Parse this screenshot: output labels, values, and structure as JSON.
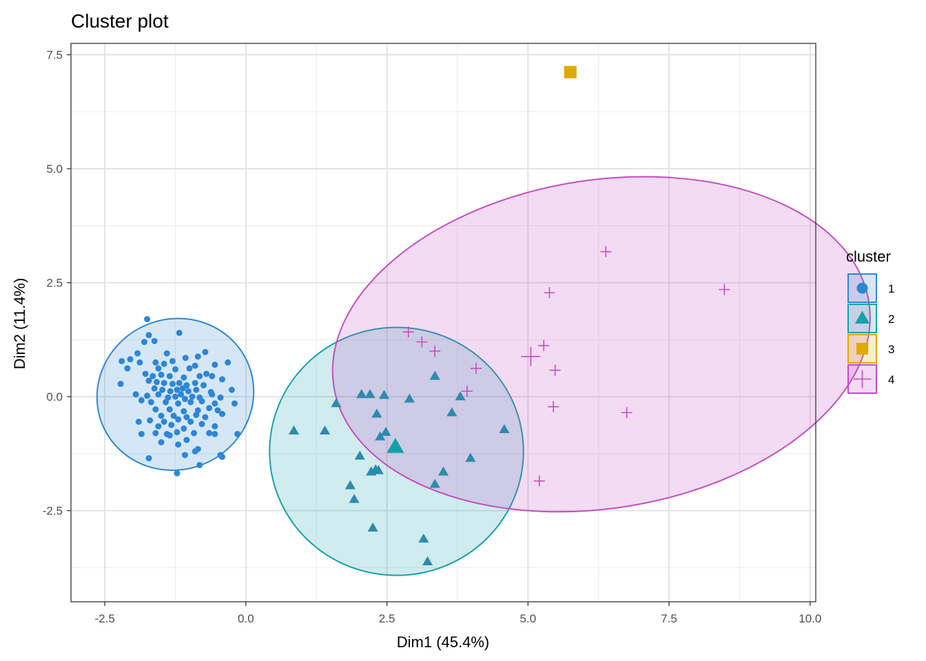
{
  "chart_data": {
    "type": "scatter",
    "title": "Cluster plot",
    "xlabel": "Dim1 (45.4%)",
    "ylabel": "Dim2 (11.4%)",
    "xlim": [
      -3.1,
      10.1
    ],
    "ylim": [
      -4.5,
      7.75
    ],
    "xticks": [
      -2.5,
      0.0,
      2.5,
      5.0,
      7.5,
      10.0
    ],
    "xtick_labels": [
      "-2.5",
      "0.0",
      "2.5",
      "5.0",
      "7.5",
      "10.0"
    ],
    "yticks": [
      -2.5,
      0.0,
      2.5,
      5.0,
      7.5
    ],
    "ytick_labels": [
      "-2.5",
      "0.0",
      "2.5",
      "5.0",
      "7.5"
    ],
    "grid": true,
    "legend": {
      "title": "cluster",
      "placement": "right"
    },
    "series": [
      {
        "name": "1",
        "color": "#2E86D6",
        "shape": "circle",
        "ellipse": {
          "cx": -1.25,
          "cy": 0.05,
          "rx": 1.4,
          "ry": 1.65,
          "angle": -25
        },
        "center": null,
        "points": [
          [
            -1.75,
            1.7
          ],
          [
            -1.18,
            1.4
          ],
          [
            -1.8,
            1.2
          ],
          [
            -1.72,
            1.35
          ],
          [
            -1.62,
            1.22
          ],
          [
            -1.92,
            0.95
          ],
          [
            -1.4,
            0.95
          ],
          [
            -0.72,
            0.98
          ],
          [
            -0.85,
            0.88
          ],
          [
            -1.07,
            0.85
          ],
          [
            -1.3,
            0.78
          ],
          [
            -1.45,
            0.72
          ],
          [
            -1.6,
            0.75
          ],
          [
            -1.88,
            0.75
          ],
          [
            -2.05,
            0.82
          ],
          [
            -2.2,
            0.78
          ],
          [
            -2.1,
            0.62
          ],
          [
            -0.55,
            0.7
          ],
          [
            -0.9,
            0.68
          ],
          [
            -0.32,
            0.75
          ],
          [
            -1.55,
            0.62
          ],
          [
            -1.25,
            0.6
          ],
          [
            -1.0,
            0.62
          ],
          [
            -1.78,
            0.5
          ],
          [
            -1.65,
            0.45
          ],
          [
            -1.5,
            0.48
          ],
          [
            -1.35,
            0.45
          ],
          [
            -1.1,
            0.42
          ],
          [
            -0.82,
            0.45
          ],
          [
            -0.7,
            0.5
          ],
          [
            -0.6,
            0.45
          ],
          [
            -0.42,
            0.38
          ],
          [
            -2.22,
            0.28
          ],
          [
            -1.72,
            0.35
          ],
          [
            -1.58,
            0.32
          ],
          [
            -1.45,
            0.3
          ],
          [
            -1.3,
            0.28
          ],
          [
            -1.18,
            0.3
          ],
          [
            -1.05,
            0.25
          ],
          [
            -0.9,
            0.3
          ],
          [
            -0.75,
            0.25
          ],
          [
            -1.62,
            0.18
          ],
          [
            -1.48,
            0.15
          ],
          [
            -1.34,
            0.12
          ],
          [
            -1.22,
            0.15
          ],
          [
            -1.12,
            0.18
          ],
          [
            -1.02,
            0.12
          ],
          [
            -0.88,
            0.15
          ],
          [
            -0.62,
            0.1
          ],
          [
            -0.25,
            0.15
          ],
          [
            -1.95,
            0.05
          ],
          [
            -1.75,
            0.02
          ],
          [
            -1.55,
            0.05
          ],
          [
            -1.38,
            -0.02
          ],
          [
            -1.25,
            0.0
          ],
          [
            -1.15,
            0.05
          ],
          [
            -1.08,
            -0.05
          ],
          [
            -0.95,
            0.0
          ],
          [
            -0.82,
            -0.02
          ],
          [
            -0.6,
            0.05
          ],
          [
            -0.45,
            -0.02
          ],
          [
            -1.85,
            -0.08
          ],
          [
            -1.68,
            -0.12
          ],
          [
            -1.42,
            -0.12
          ],
          [
            -1.2,
            -0.15
          ],
          [
            -0.98,
            -0.12
          ],
          [
            -0.78,
            -0.1
          ],
          [
            -0.55,
            -0.15
          ],
          [
            -0.2,
            -0.15
          ],
          [
            -1.6,
            -0.28
          ],
          [
            -1.35,
            -0.28
          ],
          [
            -1.1,
            -0.32
          ],
          [
            -0.85,
            -0.3
          ],
          [
            -0.65,
            -0.25
          ],
          [
            -0.5,
            -0.3
          ],
          [
            -1.5,
            -0.42
          ],
          [
            -1.28,
            -0.42
          ],
          [
            -1.05,
            -0.45
          ],
          [
            -0.88,
            -0.4
          ],
          [
            -0.72,
            -0.45
          ],
          [
            -0.42,
            -0.38
          ],
          [
            -1.9,
            -0.55
          ],
          [
            -1.7,
            -0.52
          ],
          [
            -1.45,
            -0.55
          ],
          [
            -1.2,
            -0.5
          ],
          [
            -0.98,
            -0.55
          ],
          [
            -1.55,
            -0.65
          ],
          [
            -1.32,
            -0.62
          ],
          [
            -1.1,
            -0.7
          ],
          [
            -0.78,
            -0.6
          ],
          [
            -0.55,
            -0.65
          ],
          [
            -1.22,
            -0.78
          ],
          [
            -0.92,
            -0.8
          ],
          [
            -0.65,
            -0.8
          ],
          [
            -0.55,
            -0.82
          ],
          [
            -1.85,
            -0.82
          ],
          [
            -1.6,
            -0.8
          ],
          [
            -1.4,
            -0.82
          ],
          [
            -1.35,
            -0.85
          ],
          [
            -0.15,
            -0.82
          ],
          [
            -1.05,
            -0.95
          ],
          [
            -1.5,
            -1.0
          ],
          [
            -0.85,
            -1.15
          ],
          [
            -1.2,
            -1.05
          ],
          [
            -0.9,
            -1.2
          ],
          [
            -1.08,
            -1.28
          ],
          [
            -0.45,
            -1.28
          ],
          [
            -0.42,
            -1.32
          ],
          [
            -1.72,
            -1.35
          ],
          [
            -0.82,
            -1.5
          ],
          [
            -1.22,
            -1.68
          ]
        ]
      },
      {
        "name": "2",
        "color": "#15A1AA",
        "shape": "triangle",
        "ellipse": {
          "cx": 2.67,
          "cy": -1.2,
          "rx": 2.25,
          "ry": 2.72,
          "angle": 0
        },
        "center": [
          2.65,
          -1.1
        ],
        "points": [
          [
            3.35,
            0.45
          ],
          [
            2.05,
            0.05
          ],
          [
            2.2,
            0.05
          ],
          [
            2.45,
            0.03
          ],
          [
            1.6,
            -0.15
          ],
          [
            2.9,
            -0.05
          ],
          [
            3.8,
            0.0
          ],
          [
            2.32,
            -0.38
          ],
          [
            3.65,
            -0.35
          ],
          [
            0.85,
            -0.75
          ],
          [
            1.4,
            -0.75
          ],
          [
            2.38,
            -0.88
          ],
          [
            4.58,
            -0.72
          ],
          [
            2.48,
            -0.78
          ],
          [
            2.02,
            -1.3
          ],
          [
            3.98,
            -1.35
          ],
          [
            2.22,
            -1.65
          ],
          [
            2.3,
            -1.6
          ],
          [
            2.35,
            -1.62
          ],
          [
            3.5,
            -1.65
          ],
          [
            1.85,
            -1.95
          ],
          [
            3.35,
            -1.92
          ],
          [
            1.92,
            -2.25
          ],
          [
            2.25,
            -2.88
          ],
          [
            3.15,
            -3.12
          ],
          [
            3.22,
            -3.62
          ]
        ]
      },
      {
        "name": "3",
        "color": "#E1A800",
        "shape": "square",
        "ellipse": null,
        "center": null,
        "points": [
          [
            5.75,
            7.12
          ]
        ]
      },
      {
        "name": "4",
        "color": "#C34DC1",
        "shape": "plus",
        "ellipse": {
          "cx": 6.3,
          "cy": 1.15,
          "rx": 4.8,
          "ry": 3.6,
          "angle": -9
        },
        "center": [
          5.05,
          0.88
        ],
        "points": [
          [
            6.38,
            3.18
          ],
          [
            8.48,
            2.35
          ],
          [
            5.38,
            2.28
          ],
          [
            2.88,
            1.42
          ],
          [
            3.12,
            1.2
          ],
          [
            3.35,
            1.0
          ],
          [
            5.28,
            1.12
          ],
          [
            4.08,
            0.62
          ],
          [
            5.48,
            0.58
          ],
          [
            3.92,
            0.12
          ],
          [
            5.45,
            -0.22
          ],
          [
            6.75,
            -0.35
          ],
          [
            5.2,
            -1.85
          ]
        ]
      }
    ]
  }
}
